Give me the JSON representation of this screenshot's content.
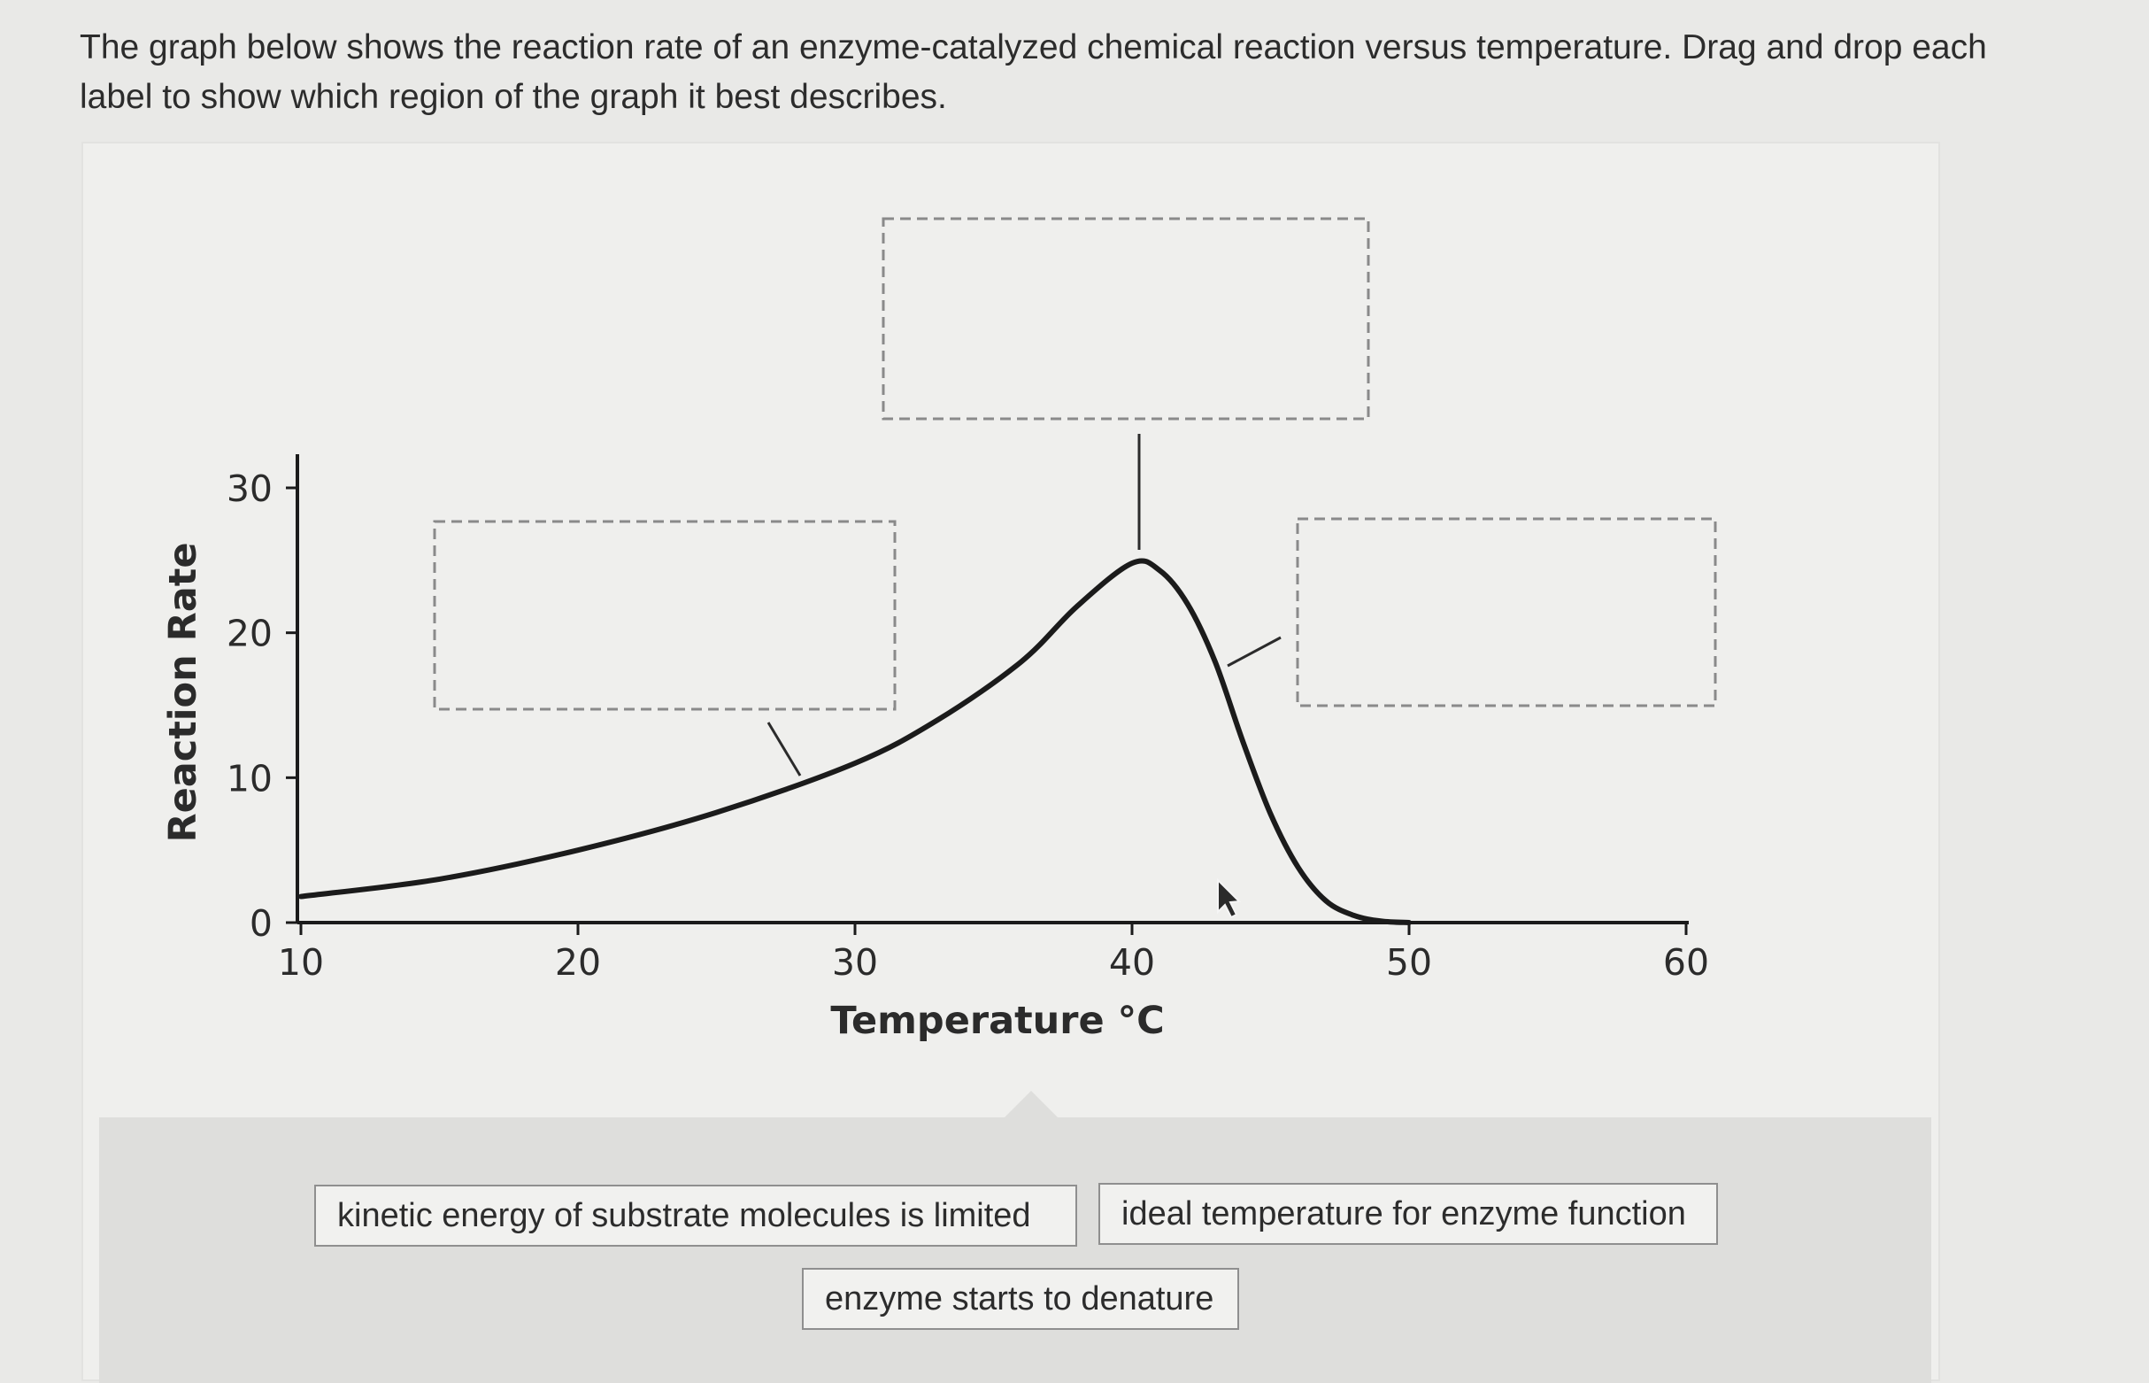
{
  "question": {
    "line1": "The graph below shows the reaction rate of an enzyme-catalyzed chemical reaction versus temperature. Drag and drop each",
    "line2": "label to show which region of the graph it best describes."
  },
  "chart_data": {
    "type": "line",
    "xlabel": "Temperature °C",
    "ylabel": "Reaction Rate",
    "xlim": [
      10,
      60
    ],
    "ylim": [
      0,
      30
    ],
    "x_ticks": [
      "10",
      "20",
      "30",
      "40",
      "50",
      "60"
    ],
    "y_ticks": [
      "0",
      "10",
      "20",
      "30"
    ],
    "series": [
      {
        "x": [
          10,
          15,
          20,
          25,
          30,
          33,
          36,
          38,
          40,
          41,
          42,
          43,
          44,
          45,
          46,
          47,
          48,
          49,
          50
        ],
        "values": [
          1.8,
          3.0,
          5.0,
          7.6,
          11.0,
          14.0,
          18.0,
          21.8,
          24.8,
          24.3,
          22.0,
          18.0,
          12.5,
          7.5,
          3.8,
          1.5,
          0.5,
          0.1,
          0.0
        ]
      }
    ],
    "grid": false,
    "legend": "none",
    "color": "#1b1b1b"
  },
  "drop_zones": [
    {
      "name": "low-temperature-region",
      "value": ""
    },
    {
      "name": "peak-region",
      "value": ""
    },
    {
      "name": "high-temperature-region",
      "value": ""
    }
  ],
  "labels": [
    {
      "text": "kinetic energy of substrate molecules is limited"
    },
    {
      "text": "ideal temperature for enzyme function"
    },
    {
      "text": "enzyme starts to denature"
    }
  ]
}
